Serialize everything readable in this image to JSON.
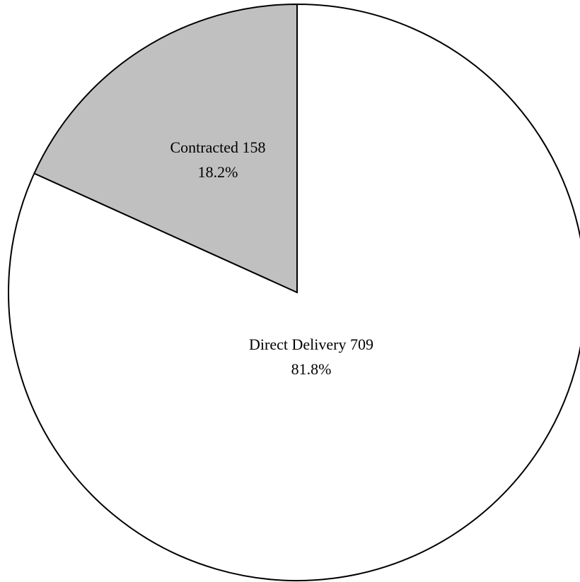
{
  "chart_data": {
    "type": "pie",
    "categories": [
      "Direct Delivery",
      "Contracted"
    ],
    "values": [
      709,
      158
    ],
    "percent_labels": [
      "81.8%",
      "18.2%"
    ],
    "colors": [
      "#ffffff",
      "#c0c0c0"
    ]
  }
}
